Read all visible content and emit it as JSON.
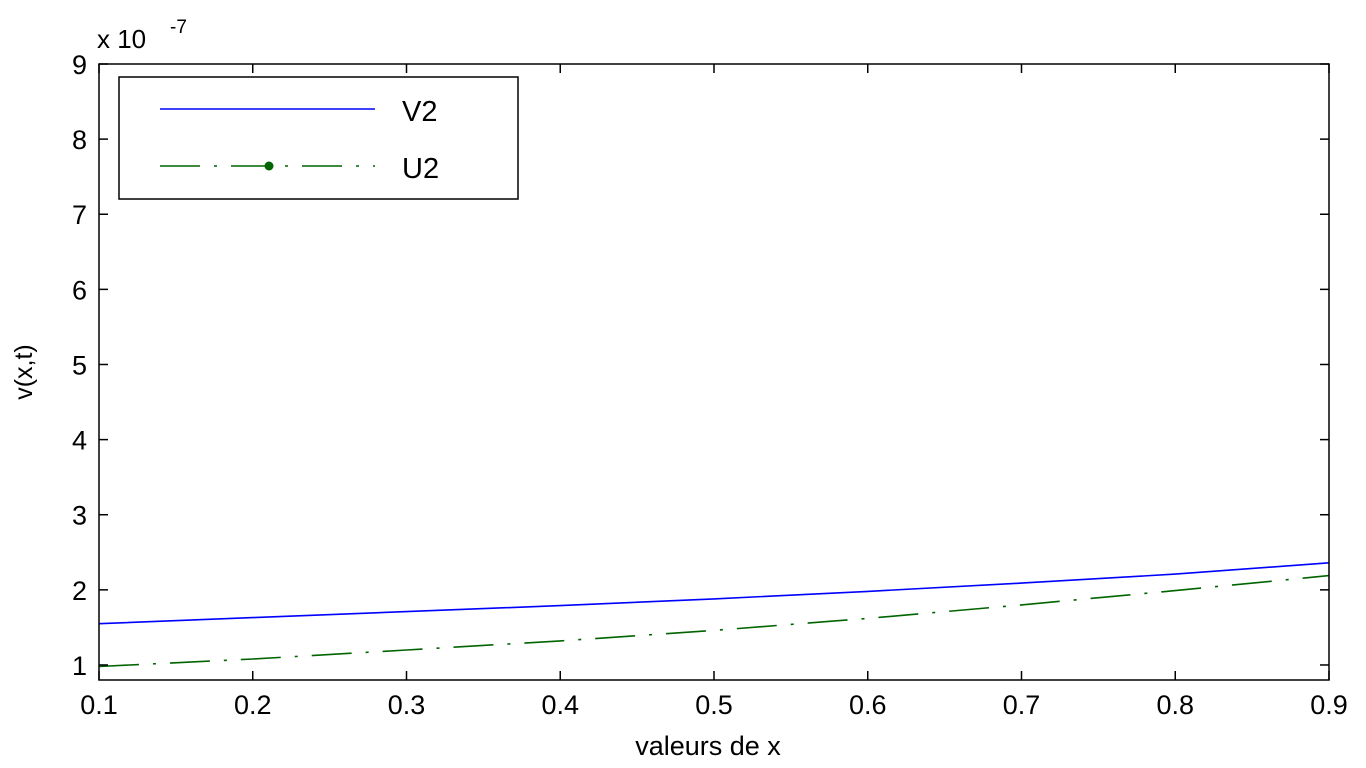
{
  "chart_data": {
    "type": "line",
    "xlabel": "valeurs de x",
    "ylabel": "v(x,t)",
    "y_multiplier": {
      "base": "x 10",
      "exponent": "-7"
    },
    "xlim": [
      0.1,
      0.9
    ],
    "ylim": [
      0.8,
      9
    ],
    "x_ticks": [
      "0.1",
      "0.2",
      "0.3",
      "0.4",
      "0.5",
      "0.6",
      "0.7",
      "0.8",
      "0.9"
    ],
    "y_ticks": [
      "1",
      "2",
      "3",
      "4",
      "5",
      "6",
      "7",
      "8",
      "9"
    ],
    "grid": false,
    "legend": "top-left",
    "series": [
      {
        "name": "V2",
        "color": "#0000ff",
        "style": "solid",
        "x": [
          0.1,
          0.2,
          0.3,
          0.4,
          0.5,
          0.6,
          0.7,
          0.8,
          0.9
        ],
        "values": [
          1.55,
          1.63,
          1.71,
          1.79,
          1.88,
          1.98,
          2.09,
          2.21,
          2.36
        ]
      },
      {
        "name": "U2",
        "color": "#006400",
        "style": "dash-dot-marker",
        "x": [
          0.1,
          0.2,
          0.3,
          0.4,
          0.5,
          0.6,
          0.7,
          0.8,
          0.9
        ],
        "values": [
          0.98,
          1.08,
          1.2,
          1.32,
          1.46,
          1.62,
          1.8,
          1.99,
          2.19
        ]
      }
    ]
  }
}
